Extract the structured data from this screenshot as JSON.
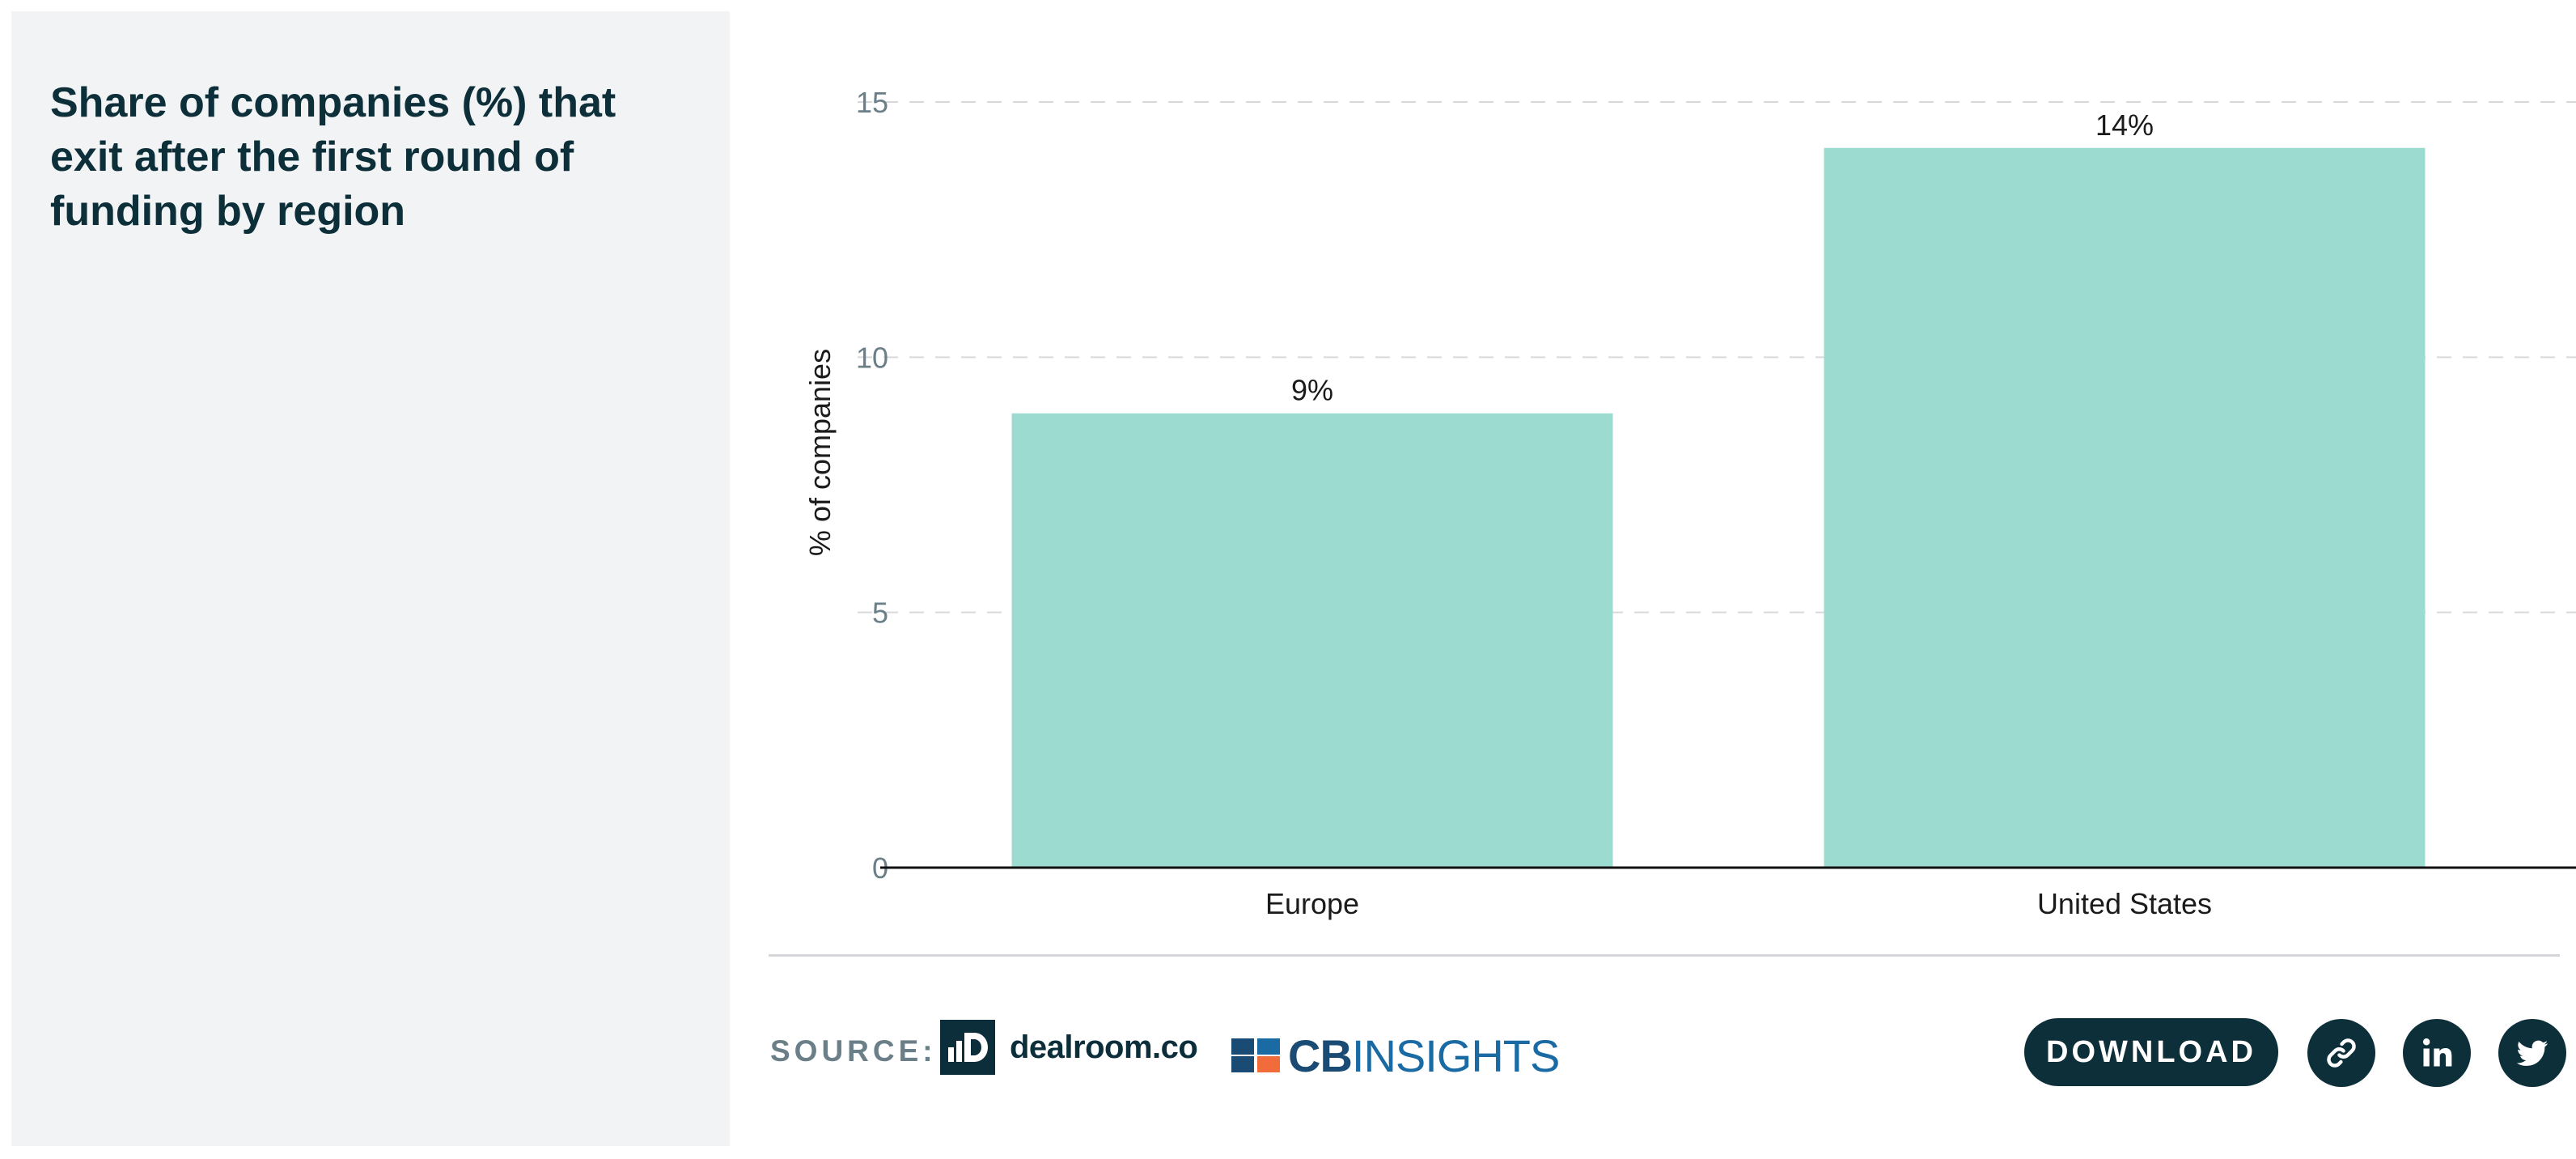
{
  "title": "Share of companies (%) that exit after the first round of funding by region",
  "footer": {
    "source_label": "SOURCE:",
    "dealroom_logo_text": "dealroom.co",
    "cb_logo_text_bold": "CB",
    "cb_logo_text_light": "INSIGHTS",
    "download_label": "DOWNLOAD",
    "share_icons": [
      "link-icon",
      "linkedin-icon",
      "twitter-icon"
    ]
  },
  "colors": {
    "bar": "#9cdbcf",
    "text_dark": "#0c2f3a",
    "axis_tick": "#6b7f88"
  },
  "chart_data": {
    "type": "bar",
    "categories": [
      "Europe",
      "United States"
    ],
    "values": [
      8.9,
      14.1
    ],
    "value_labels": [
      "9%",
      "14%"
    ],
    "ylabel": "% of companies",
    "ylim": [
      0,
      15
    ],
    "yticks": [
      0,
      5,
      10,
      15
    ],
    "grid": "horizontal-dashed",
    "legend": "none"
  }
}
